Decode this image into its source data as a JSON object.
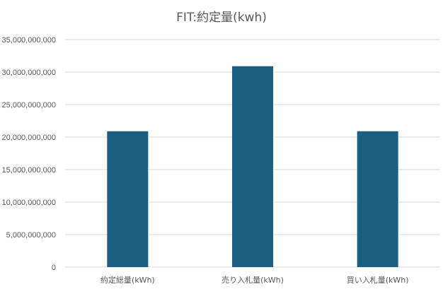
{
  "chart_data": {
    "type": "bar",
    "title": "FIT:約定量(kwh)",
    "xlabel": "",
    "ylabel": "",
    "categories": [
      "約定総量(kWh)",
      "売り入札量(kWh)",
      "買い入札量(kWh)"
    ],
    "values": [
      20900000000,
      30900000000,
      20900000000
    ],
    "ylim": [
      0,
      35000000000
    ],
    "yticks": [
      0,
      5000000000,
      10000000000,
      15000000000,
      20000000000,
      25000000000,
      30000000000,
      35000000000
    ],
    "ytick_labels": [
      "0",
      "5,000,000,000",
      "10,000,000,000",
      "15,000,000,000",
      "20,000,000,000",
      "25,000,000,000",
      "30,000,000,000",
      "35,000,000,000"
    ],
    "grid": true,
    "legend": "none",
    "bar_color": "#1a5f80",
    "grid_color": "#d9d9d9"
  }
}
